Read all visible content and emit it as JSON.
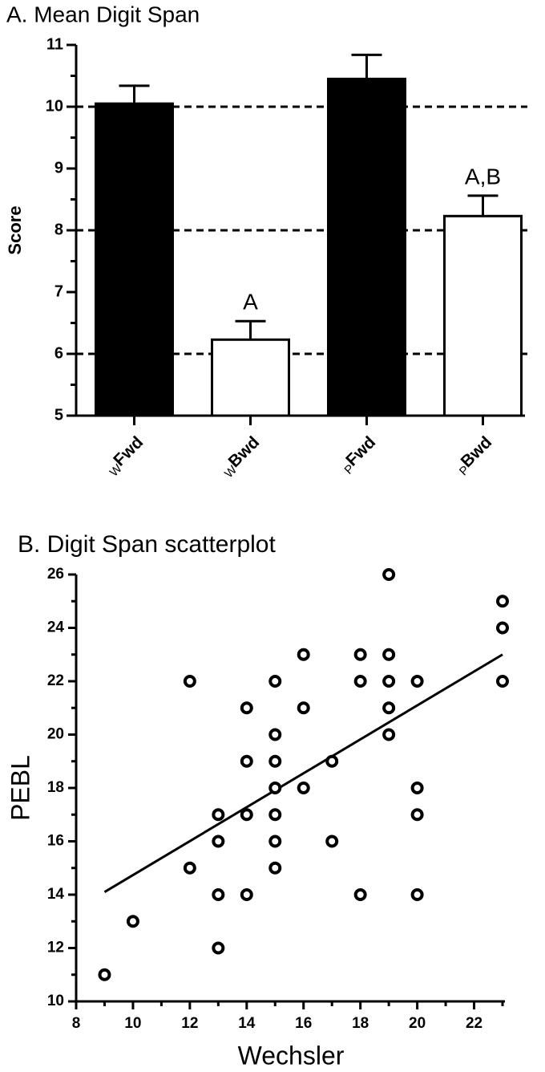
{
  "chart_data": [
    {
      "type": "bar",
      "title": "A. Mean Digit Span",
      "y_label": "Score",
      "category_prefixes": [
        "W",
        "W",
        "P",
        "P"
      ],
      "categories": [
        "Fwd",
        "Bwd",
        "Fwd",
        "Bwd"
      ],
      "values": [
        10.05,
        6.23,
        10.45,
        8.23
      ],
      "errors": [
        0.29,
        0.3,
        0.39,
        0.33
      ],
      "colors": [
        "#000000",
        "#ffffff",
        "#000000",
        "#ffffff"
      ],
      "annotations": [
        null,
        "A",
        null,
        "A,B"
      ],
      "ylim": [
        5,
        11
      ],
      "yticks": [
        5,
        6,
        7,
        8,
        9,
        10,
        11
      ],
      "y_minor_ticks": [
        5.5,
        6.5,
        7.5,
        8.5,
        9.5,
        10.5
      ],
      "reference_lines": [
        6,
        8,
        10
      ]
    },
    {
      "type": "scatter",
      "title": "B. Digit Span scatterplot",
      "x_label": "Wechsler",
      "y_label": "PEBL",
      "x": [
        9,
        10,
        12,
        12,
        13,
        13,
        13,
        13,
        14,
        14,
        14,
        14,
        15,
        15,
        15,
        15,
        15,
        15,
        15,
        16,
        16,
        16,
        17,
        17,
        18,
        18,
        18,
        19,
        19,
        19,
        19,
        19,
        20,
        20,
        20,
        20,
        23,
        23,
        23
      ],
      "y": [
        11,
        13,
        22,
        15,
        17,
        16,
        14,
        12,
        21,
        19,
        17,
        14,
        22,
        20,
        19,
        18,
        17,
        16,
        15,
        23,
        21,
        18,
        19,
        16,
        23,
        22,
        14,
        26,
        23,
        22,
        21,
        20,
        22,
        18,
        17,
        14,
        25,
        24,
        22
      ],
      "fit_line": {
        "x": [
          9,
          23
        ],
        "y": [
          14.1,
          23.0
        ]
      },
      "xlim": [
        8,
        23
      ],
      "xticks": [
        8,
        10,
        12,
        14,
        16,
        18,
        20,
        22
      ],
      "x_minor_ticks": [
        9,
        11,
        13,
        15,
        17,
        19,
        21,
        23
      ],
      "ylim": [
        10,
        26
      ],
      "yticks": [
        10,
        12,
        14,
        16,
        18,
        20,
        22,
        24,
        26
      ],
      "y_minor_ticks": [
        11,
        13,
        15,
        17,
        19,
        21,
        23,
        25
      ]
    }
  ]
}
